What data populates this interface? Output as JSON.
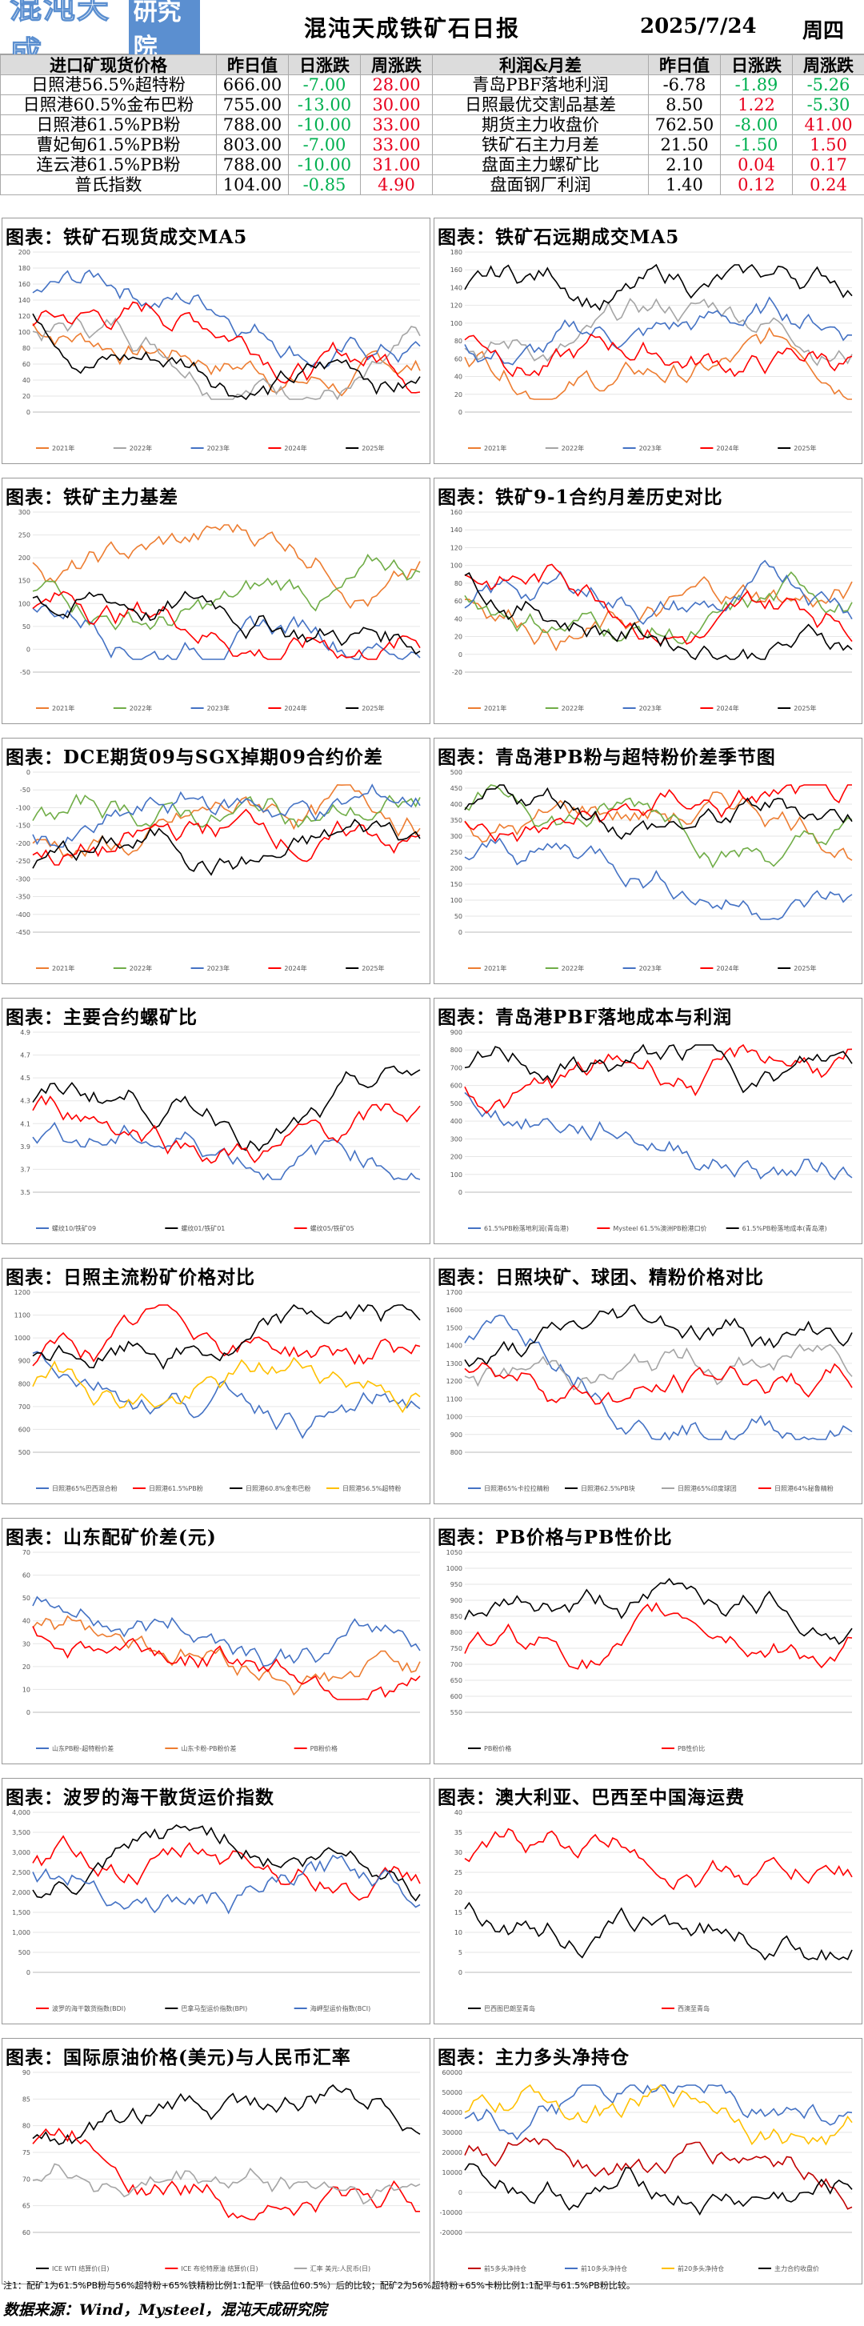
{
  "header": {
    "logo_text": "混沌天成",
    "logo_badge": "研究院",
    "title": "混沌天成铁矿石日报",
    "date": "2025/7/24",
    "weekday": "周四"
  },
  "table": {
    "head_left": [
      "进口矿现货价格",
      "昨日值",
      "日涨跌",
      "周涨跌"
    ],
    "head_right": [
      "利润&月差",
      "昨日值",
      "日涨跌",
      "周涨跌"
    ],
    "rows": [
      {
        "l": [
          "日照港56.5%超特粉",
          "666.00",
          "-7.00",
          "28.00"
        ],
        "ld": [
          "dn",
          "up"
        ],
        "r": [
          "青岛PBF落地利润",
          "-6.78",
          "-1.89",
          "-5.26"
        ],
        "rd": [
          "dn",
          "dn"
        ]
      },
      {
        "l": [
          "日照港60.5%金布巴粉",
          "755.00",
          "-13.00",
          "30.00"
        ],
        "ld": [
          "dn",
          "up"
        ],
        "r": [
          "日照最优交割品基差",
          "8.50",
          "1.22",
          "-5.30"
        ],
        "rd": [
          "up",
          "dn"
        ]
      },
      {
        "l": [
          "日照港61.5%PB粉",
          "788.00",
          "-10.00",
          "33.00"
        ],
        "ld": [
          "dn",
          "up"
        ],
        "r": [
          "期货主力收盘价",
          "762.50",
          "-8.00",
          "41.00"
        ],
        "rd": [
          "dn",
          "up"
        ]
      },
      {
        "l": [
          "曹妃甸61.5%PB粉",
          "803.00",
          "-7.00",
          "33.00"
        ],
        "ld": [
          "dn",
          "up"
        ],
        "r": [
          "铁矿石主力月差",
          "21.50",
          "-1.50",
          "1.50"
        ],
        "rd": [
          "dn",
          "up"
        ]
      },
      {
        "l": [
          "连云港61.5%PB粉",
          "788.00",
          "-10.00",
          "31.00"
        ],
        "ld": [
          "dn",
          "up"
        ],
        "r": [
          "盘面主力螺矿比",
          "2.10",
          "0.04",
          "0.17"
        ],
        "rd": [
          "up",
          "up"
        ]
      },
      {
        "l": [
          "普氏指数",
          "104.00",
          "-0.85",
          "4.90"
        ],
        "ld": [
          "dn",
          "up"
        ],
        "r": [
          "盘面钢厂利润",
          "1.40",
          "0.12",
          "0.24"
        ],
        "rd": [
          "up",
          "up"
        ]
      }
    ]
  },
  "panels": [
    {
      "title": "图表：铁矿石现货成交MA5",
      "ylim": [
        0,
        200
      ],
      "yticks": [
        "200",
        "180",
        "160",
        "140",
        "120",
        "100",
        "80",
        "60",
        "40",
        "20",
        "0"
      ],
      "legend": [
        "2021年",
        "2022年",
        "2023年",
        "2024年",
        "2025年"
      ],
      "colors": [
        "#ed7d31",
        "#a5a5a5",
        "#4472c4",
        "#ff0000",
        "#000000"
      ]
    },
    {
      "title": "图表：铁矿石远期成交MA5",
      "ylim": [
        0,
        180
      ],
      "yticks": [
        "180",
        "160",
        "140",
        "120",
        "100",
        "80",
        "60",
        "40",
        "20",
        "0"
      ],
      "legend": [
        "2021年",
        "2022年",
        "2023年",
        "2024年",
        "2025年"
      ],
      "colors": [
        "#ed7d31",
        "#a5a5a5",
        "#4472c4",
        "#ff0000",
        "#000000"
      ]
    },
    {
      "title": "图表：铁矿主力基差",
      "ylim": [
        -50,
        300
      ],
      "yticks": [
        "300",
        "250",
        "200",
        "150",
        "100",
        "50",
        "0",
        "-50"
      ],
      "legend": [
        "2021年",
        "2022年",
        "2023年",
        "2024年",
        "2025年"
      ],
      "colors": [
        "#ed7d31",
        "#70ad47",
        "#4472c4",
        "#ff0000",
        "#000000"
      ]
    },
    {
      "title": "图表：铁矿9-1合约月差历史对比",
      "ylim": [
        -20,
        160
      ],
      "yticks": [
        "160",
        "140",
        "120",
        "100",
        "80",
        "60",
        "40",
        "20",
        "0",
        "-20"
      ],
      "legend": [
        "2021年",
        "2022年",
        "2023年",
        "2024年",
        "2025年"
      ],
      "colors": [
        "#ed7d31",
        "#70ad47",
        "#4472c4",
        "#ff0000",
        "#000000"
      ]
    },
    {
      "title": "图表：DCE期货09与SGX掉期09合约价差",
      "ylim": [
        -450,
        0
      ],
      "yticks": [
        "0",
        "-50",
        "-100",
        "-150",
        "-200",
        "-250",
        "-300",
        "-350",
        "-400",
        "-450"
      ],
      "legend": [
        "2021年",
        "2022年",
        "2023年",
        "2024年",
        "2025年"
      ],
      "colors": [
        "#ed7d31",
        "#70ad47",
        "#4472c4",
        "#ff0000",
        "#000000"
      ]
    },
    {
      "title": "图表：青岛港PB粉与超特粉价差季节图",
      "ylim": [
        0,
        500
      ],
      "yticks": [
        "500",
        "450",
        "400",
        "350",
        "300",
        "250",
        "200",
        "150",
        "100",
        "50",
        "0"
      ],
      "legend": [
        "2021年",
        "2022年",
        "2023年",
        "2024年",
        "2025年"
      ],
      "colors": [
        "#ed7d31",
        "#70ad47",
        "#4472c4",
        "#ff0000",
        "#000000"
      ]
    },
    {
      "title": "图表：主要合约螺矿比",
      "ylim": [
        3.5,
        4.9
      ],
      "yticks": [
        "4.9",
        "4.7",
        "4.5",
        "4.3",
        "4.1",
        "3.9",
        "3.7",
        "3.5"
      ],
      "legend": [
        "螺纹10/铁矿09",
        "螺纹01/铁矿01",
        "螺纹05/铁矿05"
      ],
      "colors": [
        "#4472c4",
        "#000000",
        "#ff0000"
      ]
    },
    {
      "title": "图表：青岛港PBF落地成本与利润",
      "ylim": [
        0,
        900
      ],
      "yticks": [
        "900",
        "800",
        "700",
        "600",
        "500",
        "400",
        "300",
        "200",
        "100",
        "0"
      ],
      "legend": [
        "61.5%PB粉落地利润(青岛港)",
        "Mysteel 61.5%澳洲PB粉港口价",
        "61.5%PB粉落地成本(青岛港)"
      ],
      "colors": [
        "#4472c4",
        "#ff0000",
        "#000000"
      ]
    },
    {
      "title": "图表：日照主流粉矿价格对比",
      "ylim": [
        500,
        1200
      ],
      "yticks": [
        "1200",
        "1100",
        "1000",
        "900",
        "800",
        "700",
        "600",
        "500"
      ],
      "legend": [
        "日照港65%巴西混合粉",
        "日照港61.5%PB粉",
        "日照港60.8%金布巴粉",
        "日照港56.5%超特粉"
      ],
      "colors": [
        "#4472c4",
        "#ff0000",
        "#000000",
        "#ffc000"
      ]
    },
    {
      "title": "图表：日照块矿、球团、精粉价格对比",
      "ylim": [
        800,
        1700
      ],
      "yticks": [
        "1700",
        "1600",
        "1500",
        "1400",
        "1300",
        "1200",
        "1100",
        "1000",
        "900",
        "800"
      ],
      "legend": [
        "日照港65%卡拉拉精粉",
        "日照港62.5%PB块",
        "日照港65%印度球团",
        "日照港64%秘鲁精粉"
      ],
      "colors": [
        "#4472c4",
        "#000000",
        "#a5a5a5",
        "#ff0000"
      ]
    },
    {
      "title": "图表：山东配矿价差(元)",
      "ylim": [
        0,
        70
      ],
      "yticks": [
        "70",
        "60",
        "50",
        "40",
        "30",
        "20",
        "10",
        "0"
      ],
      "legend": [
        "山东PB粉-超特粉价差",
        "山东卡粉-PB粉价差",
        "PB粉价格"
      ],
      "colors": [
        "#4472c4",
        "#ed7d31",
        "#ff0000"
      ]
    },
    {
      "title": "图表：PB价格与PB性价比",
      "ylim": [
        0,
        1050
      ],
      "yticks": [
        "1050",
        "1000",
        "950",
        "900",
        "850",
        "800",
        "750",
        "700",
        "650",
        "600",
        "550"
      ],
      "legend": [
        "PB粉价格",
        "PB性价比"
      ],
      "colors": [
        "#000000",
        "#ff0000"
      ]
    },
    {
      "title": "图表：波罗的海干散货运价指数",
      "ylim": [
        0,
        4000
      ],
      "yticks": [
        "4,000",
        "3,500",
        "3,000",
        "2,500",
        "2,000",
        "1,500",
        "1,000",
        "500",
        "0"
      ],
      "legend": [
        "波罗的海干散货指数(BDI)",
        "巴拿马型运价指数(BPI)",
        "海岬型运价指数(BCI)"
      ],
      "colors": [
        "#ff0000",
        "#000000",
        "#4472c4"
      ]
    },
    {
      "title": "图表：澳大利亚、巴西至中国海运费",
      "ylim": [
        0,
        40
      ],
      "yticks": [
        "40",
        "35",
        "30",
        "25",
        "20",
        "15",
        "10",
        "5",
        "0"
      ],
      "legend": [
        "巴西图巴朗至青岛",
        "西澳至青岛"
      ],
      "colors": [
        "#000000",
        "#ff0000"
      ]
    },
    {
      "title": "图表：国际原油价格(美元)与人民币汇率",
      "ylim": [
        60,
        90
      ],
      "yticks": [
        "90",
        "85",
        "80",
        "75",
        "70",
        "65",
        "60"
      ],
      "legend": [
        "ICE WTI 结算价(日)",
        "ICE 布伦特原油 结算价(日)",
        "汇率 美元:人民币(日)"
      ],
      "colors": [
        "#000000",
        "#ff0000",
        "#a5a5a5"
      ]
    },
    {
      "title": "图表：主力多头净持仓",
      "ylim": [
        -20000,
        60000
      ],
      "yticks": [
        "60000",
        "50000",
        "40000",
        "30000",
        "20000",
        "10000",
        "0",
        "-10000",
        "-20000"
      ],
      "legend": [
        "前5多头净持仓",
        "前10多头净持仓",
        "前20多头净持仓",
        "主力合约收盘价"
      ],
      "colors": [
        "#c00000",
        "#4472c4",
        "#ffc000",
        "#000000"
      ]
    }
  ],
  "footer": {
    "note": "注1：配矿1为61.5%PB粉与56%超特粉+65%铁精粉比例1:1配平（铁品位60.5%）后的比较；配矿2为56%超特粉+65%卡粉比例1:1配平与61.5%PB粉比较。",
    "source": "数据来源：Wind，Mysteel，混沌天成研究院"
  }
}
